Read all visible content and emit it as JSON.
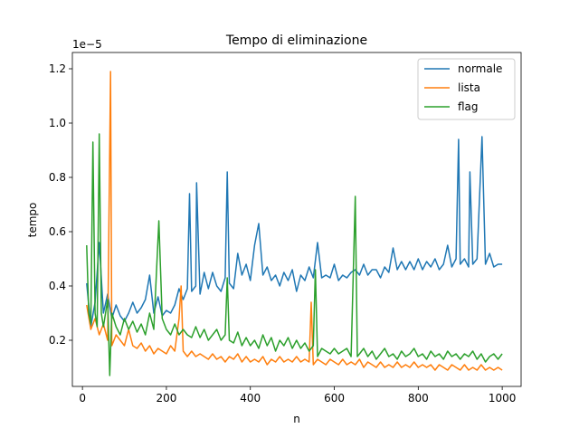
{
  "chart_data": {
    "type": "line",
    "title": "Tempo di eliminazione",
    "xlabel": "n",
    "ylabel": "tempo",
    "y_offset_label": "1e−5",
    "xlim": [
      -24,
      1045
    ],
    "ylim": [
      0.03,
      1.26
    ],
    "x_ticks": [
      0,
      200,
      400,
      600,
      800,
      1000
    ],
    "x_tick_labels": [
      "0",
      "200",
      "400",
      "600",
      "800",
      "1000"
    ],
    "y_ticks": [
      0.2,
      0.4,
      0.6,
      0.8,
      1.0,
      1.2
    ],
    "y_tick_labels": [
      "0.2",
      "0.4",
      "0.6",
      "0.8",
      "1.0",
      "1.2"
    ],
    "grid": false,
    "legend_position": "top-right",
    "series": [
      {
        "name": "normale",
        "color": "#1f77b4",
        "points": [
          [
            10,
            0.41
          ],
          [
            20,
            0.25
          ],
          [
            30,
            0.34
          ],
          [
            40,
            0.56
          ],
          [
            50,
            0.3
          ],
          [
            60,
            0.37
          ],
          [
            70,
            0.28
          ],
          [
            80,
            0.33
          ],
          [
            90,
            0.29
          ],
          [
            100,
            0.27
          ],
          [
            110,
            0.3
          ],
          [
            120,
            0.34
          ],
          [
            130,
            0.3
          ],
          [
            140,
            0.32
          ],
          [
            150,
            0.35
          ],
          [
            160,
            0.44
          ],
          [
            170,
            0.3
          ],
          [
            180,
            0.36
          ],
          [
            190,
            0.29
          ],
          [
            200,
            0.31
          ],
          [
            210,
            0.3
          ],
          [
            220,
            0.33
          ],
          [
            230,
            0.39
          ],
          [
            240,
            0.35
          ],
          [
            250,
            0.39
          ],
          [
            255,
            0.74
          ],
          [
            260,
            0.38
          ],
          [
            270,
            0.4
          ],
          [
            272,
            0.78
          ],
          [
            280,
            0.37
          ],
          [
            290,
            0.45
          ],
          [
            300,
            0.39
          ],
          [
            310,
            0.45
          ],
          [
            320,
            0.4
          ],
          [
            330,
            0.38
          ],
          [
            340,
            0.43
          ],
          [
            345,
            0.82
          ],
          [
            350,
            0.41
          ],
          [
            360,
            0.39
          ],
          [
            370,
            0.52
          ],
          [
            380,
            0.44
          ],
          [
            390,
            0.48
          ],
          [
            400,
            0.42
          ],
          [
            410,
            0.55
          ],
          [
            420,
            0.63
          ],
          [
            430,
            0.44
          ],
          [
            440,
            0.47
          ],
          [
            450,
            0.42
          ],
          [
            460,
            0.44
          ],
          [
            470,
            0.4
          ],
          [
            480,
            0.45
          ],
          [
            490,
            0.42
          ],
          [
            500,
            0.46
          ],
          [
            510,
            0.38
          ],
          [
            520,
            0.44
          ],
          [
            530,
            0.42
          ],
          [
            540,
            0.47
          ],
          [
            550,
            0.43
          ],
          [
            560,
            0.56
          ],
          [
            570,
            0.43
          ],
          [
            580,
            0.44
          ],
          [
            590,
            0.43
          ],
          [
            600,
            0.48
          ],
          [
            610,
            0.42
          ],
          [
            620,
            0.44
          ],
          [
            630,
            0.43
          ],
          [
            640,
            0.45
          ],
          [
            650,
            0.46
          ],
          [
            660,
            0.44
          ],
          [
            670,
            0.48
          ],
          [
            680,
            0.44
          ],
          [
            690,
            0.46
          ],
          [
            700,
            0.46
          ],
          [
            710,
            0.43
          ],
          [
            720,
            0.47
          ],
          [
            730,
            0.45
          ],
          [
            740,
            0.54
          ],
          [
            750,
            0.46
          ],
          [
            760,
            0.49
          ],
          [
            770,
            0.46
          ],
          [
            780,
            0.49
          ],
          [
            790,
            0.46
          ],
          [
            800,
            0.5
          ],
          [
            810,
            0.46
          ],
          [
            820,
            0.49
          ],
          [
            830,
            0.47
          ],
          [
            840,
            0.5
          ],
          [
            850,
            0.46
          ],
          [
            860,
            0.48
          ],
          [
            870,
            0.55
          ],
          [
            880,
            0.47
          ],
          [
            890,
            0.5
          ],
          [
            896,
            0.94
          ],
          [
            900,
            0.48
          ],
          [
            910,
            0.5
          ],
          [
            920,
            0.47
          ],
          [
            923,
            0.82
          ],
          [
            930,
            0.48
          ],
          [
            940,
            0.5
          ],
          [
            952,
            0.95
          ],
          [
            960,
            0.48
          ],
          [
            970,
            0.52
          ],
          [
            980,
            0.47
          ],
          [
            990,
            0.48
          ],
          [
            1000,
            0.48
          ]
        ]
      },
      {
        "name": "lista",
        "color": "#ff7f0e",
        "points": [
          [
            10,
            0.33
          ],
          [
            20,
            0.24
          ],
          [
            30,
            0.28
          ],
          [
            40,
            0.22
          ],
          [
            50,
            0.26
          ],
          [
            60,
            0.2
          ],
          [
            67,
            1.19
          ],
          [
            70,
            0.18
          ],
          [
            80,
            0.22
          ],
          [
            90,
            0.2
          ],
          [
            100,
            0.18
          ],
          [
            110,
            0.24
          ],
          [
            120,
            0.18
          ],
          [
            130,
            0.17
          ],
          [
            140,
            0.19
          ],
          [
            150,
            0.16
          ],
          [
            160,
            0.18
          ],
          [
            170,
            0.15
          ],
          [
            180,
            0.17
          ],
          [
            190,
            0.16
          ],
          [
            200,
            0.15
          ],
          [
            210,
            0.18
          ],
          [
            220,
            0.16
          ],
          [
            230,
            0.28
          ],
          [
            235,
            0.4
          ],
          [
            240,
            0.16
          ],
          [
            250,
            0.14
          ],
          [
            260,
            0.16
          ],
          [
            270,
            0.14
          ],
          [
            280,
            0.15
          ],
          [
            290,
            0.14
          ],
          [
            300,
            0.13
          ],
          [
            310,
            0.15
          ],
          [
            320,
            0.13
          ],
          [
            330,
            0.14
          ],
          [
            340,
            0.12
          ],
          [
            350,
            0.14
          ],
          [
            360,
            0.13
          ],
          [
            370,
            0.15
          ],
          [
            380,
            0.12
          ],
          [
            390,
            0.14
          ],
          [
            400,
            0.12
          ],
          [
            410,
            0.13
          ],
          [
            420,
            0.12
          ],
          [
            430,
            0.14
          ],
          [
            440,
            0.11
          ],
          [
            450,
            0.13
          ],
          [
            460,
            0.12
          ],
          [
            470,
            0.14
          ],
          [
            480,
            0.12
          ],
          [
            490,
            0.13
          ],
          [
            500,
            0.12
          ],
          [
            510,
            0.14
          ],
          [
            520,
            0.12
          ],
          [
            530,
            0.13
          ],
          [
            540,
            0.12
          ],
          [
            545,
            0.34
          ],
          [
            550,
            0.11
          ],
          [
            560,
            0.13
          ],
          [
            570,
            0.12
          ],
          [
            580,
            0.11
          ],
          [
            590,
            0.13
          ],
          [
            600,
            0.12
          ],
          [
            610,
            0.11
          ],
          [
            620,
            0.13
          ],
          [
            630,
            0.11
          ],
          [
            640,
            0.12
          ],
          [
            650,
            0.11
          ],
          [
            660,
            0.13
          ],
          [
            670,
            0.1
          ],
          [
            680,
            0.12
          ],
          [
            690,
            0.11
          ],
          [
            700,
            0.1
          ],
          [
            710,
            0.12
          ],
          [
            720,
            0.1
          ],
          [
            730,
            0.11
          ],
          [
            740,
            0.1
          ],
          [
            750,
            0.12
          ],
          [
            760,
            0.1
          ],
          [
            770,
            0.11
          ],
          [
            780,
            0.1
          ],
          [
            790,
            0.12
          ],
          [
            800,
            0.1
          ],
          [
            810,
            0.11
          ],
          [
            820,
            0.1
          ],
          [
            830,
            0.11
          ],
          [
            840,
            0.09
          ],
          [
            850,
            0.11
          ],
          [
            860,
            0.1
          ],
          [
            870,
            0.09
          ],
          [
            880,
            0.11
          ],
          [
            890,
            0.1
          ],
          [
            900,
            0.09
          ],
          [
            910,
            0.11
          ],
          [
            920,
            0.09
          ],
          [
            930,
            0.1
          ],
          [
            940,
            0.09
          ],
          [
            950,
            0.11
          ],
          [
            960,
            0.09
          ],
          [
            970,
            0.1
          ],
          [
            980,
            0.09
          ],
          [
            990,
            0.1
          ],
          [
            1000,
            0.09
          ]
        ]
      },
      {
        "name": "flag",
        "color": "#2ca02c",
        "points": [
          [
            10,
            0.55
          ],
          [
            15,
            0.3
          ],
          [
            20,
            0.26
          ],
          [
            25,
            0.93
          ],
          [
            30,
            0.3
          ],
          [
            35,
            0.25
          ],
          [
            40,
            0.96
          ],
          [
            45,
            0.3
          ],
          [
            50,
            0.25
          ],
          [
            60,
            0.35
          ],
          [
            65,
            0.07
          ],
          [
            70,
            0.3
          ],
          [
            80,
            0.25
          ],
          [
            90,
            0.22
          ],
          [
            100,
            0.28
          ],
          [
            110,
            0.24
          ],
          [
            120,
            0.27
          ],
          [
            130,
            0.23
          ],
          [
            140,
            0.26
          ],
          [
            150,
            0.22
          ],
          [
            160,
            0.3
          ],
          [
            170,
            0.24
          ],
          [
            182,
            0.64
          ],
          [
            190,
            0.28
          ],
          [
            200,
            0.24
          ],
          [
            210,
            0.22
          ],
          [
            220,
            0.26
          ],
          [
            230,
            0.22
          ],
          [
            240,
            0.24
          ],
          [
            250,
            0.22
          ],
          [
            260,
            0.21
          ],
          [
            270,
            0.25
          ],
          [
            280,
            0.21
          ],
          [
            290,
            0.24
          ],
          [
            300,
            0.2
          ],
          [
            310,
            0.22
          ],
          [
            320,
            0.24
          ],
          [
            330,
            0.2
          ],
          [
            340,
            0.22
          ],
          [
            345,
            0.43
          ],
          [
            350,
            0.2
          ],
          [
            360,
            0.19
          ],
          [
            370,
            0.23
          ],
          [
            380,
            0.18
          ],
          [
            390,
            0.21
          ],
          [
            400,
            0.18
          ],
          [
            410,
            0.2
          ],
          [
            420,
            0.17
          ],
          [
            430,
            0.22
          ],
          [
            440,
            0.18
          ],
          [
            450,
            0.21
          ],
          [
            460,
            0.16
          ],
          [
            470,
            0.2
          ],
          [
            480,
            0.18
          ],
          [
            490,
            0.21
          ],
          [
            500,
            0.17
          ],
          [
            510,
            0.2
          ],
          [
            520,
            0.17
          ],
          [
            530,
            0.19
          ],
          [
            540,
            0.16
          ],
          [
            550,
            0.18
          ],
          [
            555,
            0.46
          ],
          [
            560,
            0.14
          ],
          [
            570,
            0.17
          ],
          [
            580,
            0.16
          ],
          [
            590,
            0.15
          ],
          [
            600,
            0.17
          ],
          [
            610,
            0.15
          ],
          [
            620,
            0.16
          ],
          [
            630,
            0.17
          ],
          [
            640,
            0.14
          ],
          [
            650,
            0.73
          ],
          [
            655,
            0.14
          ],
          [
            660,
            0.15
          ],
          [
            670,
            0.17
          ],
          [
            680,
            0.14
          ],
          [
            690,
            0.16
          ],
          [
            700,
            0.13
          ],
          [
            710,
            0.15
          ],
          [
            720,
            0.17
          ],
          [
            730,
            0.14
          ],
          [
            740,
            0.15
          ],
          [
            750,
            0.13
          ],
          [
            760,
            0.16
          ],
          [
            770,
            0.14
          ],
          [
            780,
            0.15
          ],
          [
            790,
            0.17
          ],
          [
            800,
            0.14
          ],
          [
            810,
            0.15
          ],
          [
            820,
            0.13
          ],
          [
            830,
            0.16
          ],
          [
            840,
            0.14
          ],
          [
            850,
            0.15
          ],
          [
            860,
            0.13
          ],
          [
            870,
            0.16
          ],
          [
            880,
            0.14
          ],
          [
            890,
            0.15
          ],
          [
            900,
            0.13
          ],
          [
            910,
            0.15
          ],
          [
            920,
            0.14
          ],
          [
            930,
            0.16
          ],
          [
            940,
            0.13
          ],
          [
            950,
            0.15
          ],
          [
            960,
            0.12
          ],
          [
            970,
            0.14
          ],
          [
            980,
            0.15
          ],
          [
            990,
            0.13
          ],
          [
            1000,
            0.15
          ]
        ]
      }
    ]
  }
}
